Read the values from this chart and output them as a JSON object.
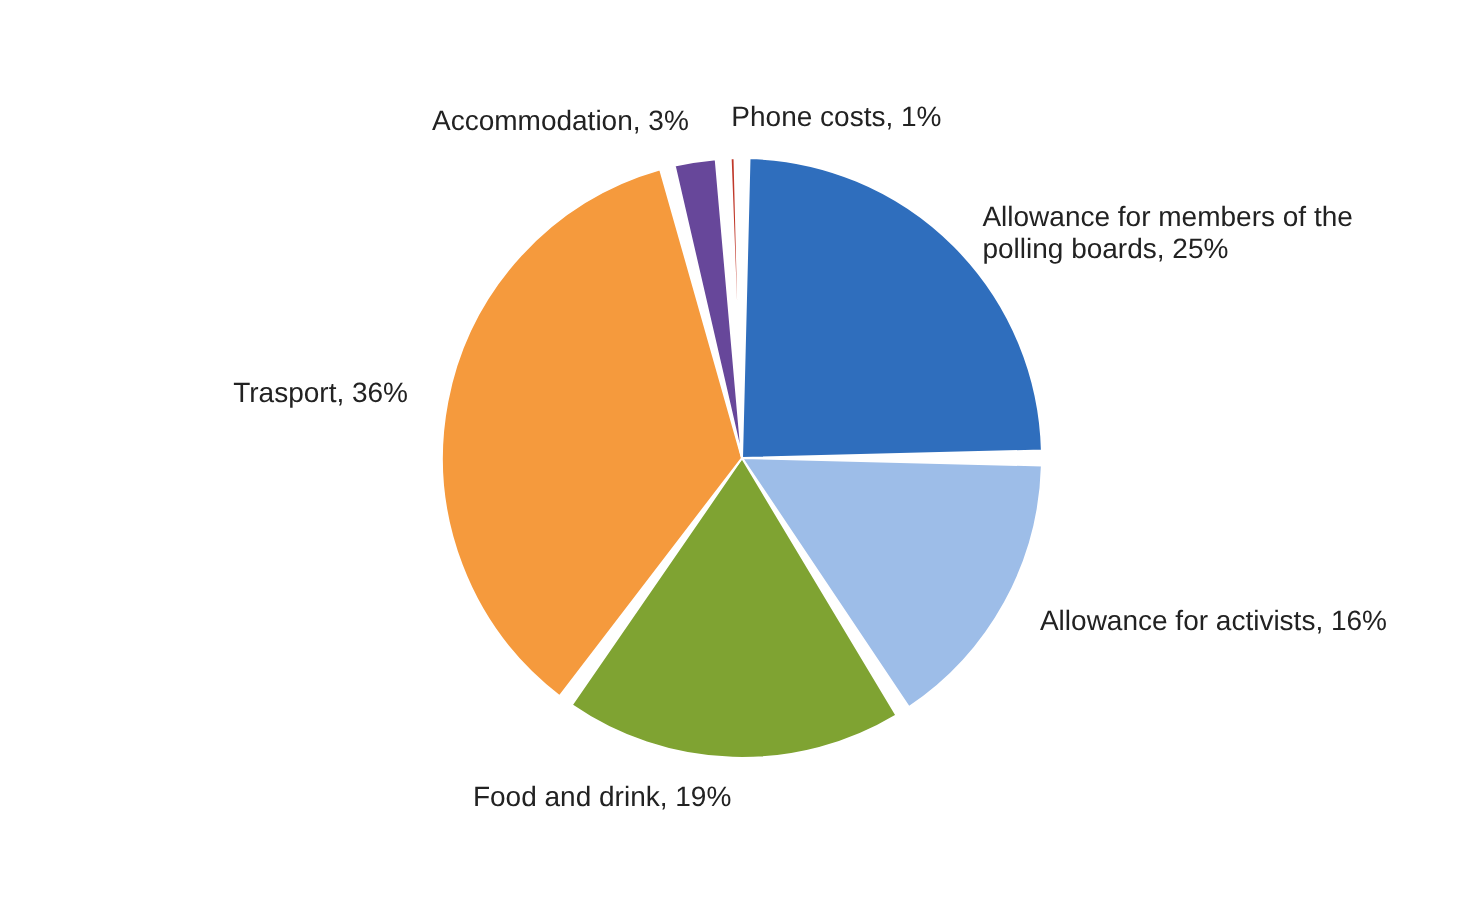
{
  "chart_data": {
    "type": "pie",
    "categories": [
      "Allowance for members of the polling boards",
      "Allowance for activists",
      "Food and drink",
      "Trasport",
      "Accommodation",
      "Phone costs"
    ],
    "values": [
      25,
      16,
      19,
      36,
      3,
      1
    ],
    "value_labels": [
      "25%",
      "16%",
      "19%",
      "36%",
      "3%",
      "1%"
    ],
    "colors": [
      "#2f6ebd",
      "#9dbde8",
      "#7fa332",
      "#f59a3d",
      "#67479a",
      "#c0392b"
    ],
    "legend": false
  }
}
